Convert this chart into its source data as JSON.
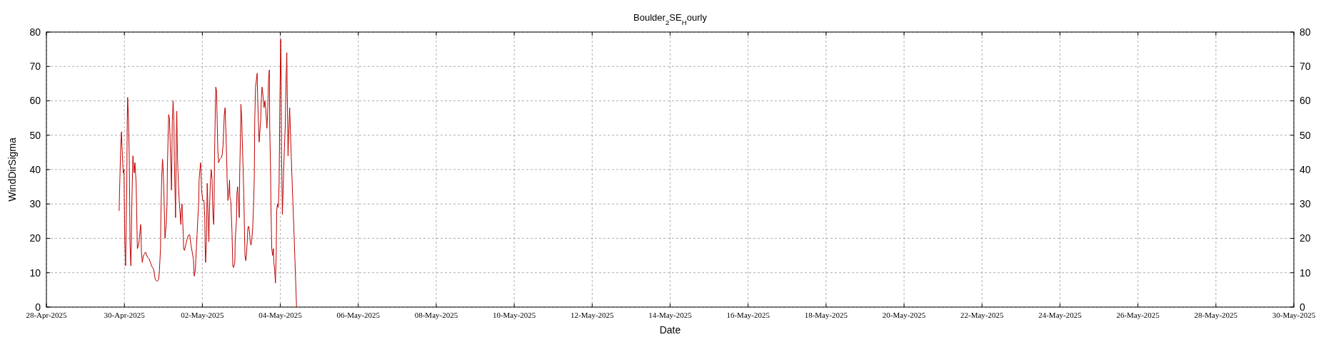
{
  "chart_data": {
    "type": "line",
    "title": "Boulder$_{2}$SE$_{H}$ourly",
    "xlabel": "Date",
    "ylabel": "WindDirSigma",
    "xlim": [
      "2025-04-28",
      "2025-05-30"
    ],
    "xticks": [
      {
        "value": "2025-04-28",
        "label": "28-Apr-2025"
      },
      {
        "value": "2025-04-30",
        "label": "30-Apr-2025"
      },
      {
        "value": "2025-05-02",
        "label": "02-May-2025"
      },
      {
        "value": "2025-05-04",
        "label": "04-May-2025"
      },
      {
        "value": "2025-05-06",
        "label": "06-May-2025"
      },
      {
        "value": "2025-05-08",
        "label": "08-May-2025"
      },
      {
        "value": "2025-05-10",
        "label": "10-May-2025"
      },
      {
        "value": "2025-05-12",
        "label": "12-May-2025"
      },
      {
        "value": "2025-05-14",
        "label": "14-May-2025"
      },
      {
        "value": "2025-05-16",
        "label": "16-May-2025"
      },
      {
        "value": "2025-05-18",
        "label": "18-May-2025"
      },
      {
        "value": "2025-05-20",
        "label": "20-May-2025"
      },
      {
        "value": "2025-05-22",
        "label": "22-May-2025"
      },
      {
        "value": "2025-05-24",
        "label": "24-May-2025"
      },
      {
        "value": "2025-05-26",
        "label": "26-May-2025"
      },
      {
        "value": "2025-05-28",
        "label": "28-May-2025"
      },
      {
        "value": "2025-05-30",
        "label": "30-May-2025"
      }
    ],
    "ylim": [
      0,
      80
    ],
    "yticks": [
      0,
      10,
      20,
      30,
      40,
      50,
      60,
      70,
      80
    ],
    "y2lim": [
      0,
      80
    ],
    "y2ticks": [
      0,
      10,
      20,
      30,
      40,
      50,
      60,
      70,
      80
    ],
    "grid": true,
    "line_style": "solid",
    "marker": "none",
    "series": [
      {
        "color": "#c00000",
        "x": [
          "2025-04-29T20:45",
          "2025-04-29T21:45",
          "2025-04-29T22:15",
          "2025-04-29T22:30",
          "2025-04-29T23:00",
          "2025-04-29T23:15",
          "2025-04-29T23:45",
          "2025-04-30T00:15",
          "2025-04-30T00:45",
          "2025-04-30T01:30",
          "2025-04-30T01:45",
          "2025-04-30T02:00",
          "2025-04-30T02:30",
          "2025-04-30T03:00",
          "2025-04-30T03:15",
          "2025-04-30T03:30",
          "2025-04-30T04:00",
          "2025-04-30T04:15",
          "2025-04-30T04:30",
          "2025-04-30T05:00",
          "2025-04-30T05:15",
          "2025-04-30T06:00",
          "2025-04-30T06:30",
          "2025-04-30T07:15",
          "2025-04-30T07:45",
          "2025-04-30T08:00",
          "2025-04-30T08:45",
          "2025-04-30T09:15",
          "2025-04-30T10:00",
          "2025-04-30T10:15",
          "2025-04-30T10:30",
          "2025-04-30T11:00",
          "2025-04-30T11:45",
          "2025-04-30T13:00",
          "2025-04-30T14:15",
          "2025-04-30T15:15",
          "2025-04-30T16:45",
          "2025-04-30T18:00",
          "2025-04-30T19:00",
          "2025-04-30T20:15",
          "2025-04-30T21:00",
          "2025-04-30T21:30",
          "2025-04-30T22:15",
          "2025-04-30T22:30",
          "2025-04-30T23:00",
          "2025-04-30T23:30",
          "2025-04-30T23:45",
          "2025-05-01T00:15",
          "2025-05-01T00:45",
          "2025-05-01T01:00",
          "2025-05-01T01:45",
          "2025-05-01T02:15",
          "2025-05-01T02:30",
          "2025-05-01T03:00",
          "2025-05-01T03:15",
          "2025-05-01T03:45",
          "2025-05-01T04:15",
          "2025-05-01T04:45",
          "2025-05-01T05:00",
          "2025-05-01T05:30",
          "2025-05-01T06:00",
          "2025-05-01T06:30",
          "2025-05-01T06:45",
          "2025-05-01T07:15",
          "2025-05-01T07:30",
          "2025-05-01T08:00",
          "2025-05-01T08:15",
          "2025-05-01T08:45",
          "2025-05-01T09:15",
          "2025-05-01T09:45",
          "2025-05-01T10:30",
          "2025-05-01T10:45",
          "2025-05-01T11:00",
          "2025-05-01T11:30",
          "2025-05-01T11:45",
          "2025-05-01T12:15",
          "2025-05-01T12:30",
          "2025-05-01T13:00",
          "2025-05-01T13:45",
          "2025-05-01T14:45",
          "2025-05-01T15:30",
          "2025-05-01T16:15",
          "2025-05-01T17:00",
          "2025-05-01T17:45",
          "2025-05-01T18:30",
          "2025-05-01T19:00",
          "2025-05-01T19:45",
          "2025-05-01T20:00",
          "2025-05-01T20:45",
          "2025-05-01T21:15",
          "2025-05-01T21:45",
          "2025-05-01T22:00",
          "2025-05-01T22:30",
          "2025-05-01T23:00",
          "2025-05-01T23:30",
          "2025-05-02T00:15",
          "2025-05-02T01:00",
          "2025-05-02T01:30",
          "2025-05-02T01:45",
          "2025-05-02T02:00",
          "2025-05-02T02:30",
          "2025-05-02T03:00",
          "2025-05-02T03:15",
          "2025-05-02T03:45",
          "2025-05-02T04:00",
          "2025-05-02T04:30",
          "2025-05-02T05:00",
          "2025-05-02T05:30",
          "2025-05-02T06:00",
          "2025-05-02T06:15",
          "2025-05-02T06:30",
          "2025-05-02T07:00",
          "2025-05-02T07:15",
          "2025-05-02T07:30",
          "2025-05-02T08:15",
          "2025-05-02T08:45",
          "2025-05-02T09:00",
          "2025-05-02T09:30",
          "2025-05-02T10:00",
          "2025-05-02T10:45",
          "2025-05-02T11:45",
          "2025-05-02T12:15",
          "2025-05-02T12:45",
          "2025-05-02T13:15",
          "2025-05-02T13:30",
          "2025-05-02T14:00",
          "2025-05-02T14:30",
          "2025-05-02T15:00",
          "2025-05-02T15:15",
          "2025-05-02T15:45",
          "2025-05-02T16:15",
          "2025-05-02T16:45",
          "2025-05-02T17:00",
          "2025-05-02T17:30",
          "2025-05-02T18:15",
          "2025-05-02T18:45",
          "2025-05-02T19:15",
          "2025-05-02T20:00",
          "2025-05-02T20:15",
          "2025-05-02T21:00",
          "2025-05-02T21:15",
          "2025-05-02T21:45",
          "2025-05-02T22:15",
          "2025-05-02T22:45",
          "2025-05-02T23:00",
          "2025-05-02T23:30",
          "2025-05-02T23:45",
          "2025-05-03T00:15",
          "2025-05-03T00:30",
          "2025-05-03T01:00",
          "2025-05-03T01:30",
          "2025-05-03T02:00",
          "2025-05-03T02:15",
          "2025-05-03T02:45",
          "2025-05-03T03:15",
          "2025-05-03T03:45",
          "2025-05-03T04:00",
          "2025-05-03T04:30",
          "2025-05-03T05:00",
          "2025-05-03T05:30",
          "2025-05-03T06:00",
          "2025-05-03T06:30",
          "2025-05-03T07:00",
          "2025-05-03T07:30",
          "2025-05-03T08:00",
          "2025-05-03T08:15",
          "2025-05-03T08:45",
          "2025-05-03T09:15",
          "2025-05-03T09:45",
          "2025-05-03T10:00",
          "2025-05-03T10:30",
          "2025-05-03T11:00",
          "2025-05-03T11:15",
          "2025-05-03T12:00",
          "2025-05-03T12:15",
          "2025-05-03T12:45",
          "2025-05-03T13:15",
          "2025-05-03T13:45",
          "2025-05-03T14:00",
          "2025-05-03T14:30",
          "2025-05-03T15:00",
          "2025-05-03T15:30",
          "2025-05-03T15:45",
          "2025-05-03T16:15",
          "2025-05-03T16:45",
          "2025-05-03T17:15",
          "2025-05-03T17:30",
          "2025-05-03T18:00",
          "2025-05-03T18:15",
          "2025-05-03T18:45",
          "2025-05-03T19:15",
          "2025-05-03T19:45",
          "2025-05-03T20:00",
          "2025-05-03T20:30",
          "2025-05-03T21:00",
          "2025-05-03T21:30",
          "2025-05-03T21:45",
          "2025-05-03T22:15",
          "2025-05-03T22:45",
          "2025-05-03T23:15",
          "2025-05-03T23:45",
          "2025-05-04T00:15",
          "2025-05-04T00:30",
          "2025-05-04T00:45",
          "2025-05-04T01:15",
          "2025-05-04T01:45",
          "2025-05-04T02:00",
          "2025-05-04T02:30",
          "2025-05-04T03:00",
          "2025-05-04T03:30",
          "2025-05-04T04:00",
          "2025-05-04T04:15",
          "2025-05-04T04:45",
          "2025-05-04T05:45",
          "2025-05-04T07:00",
          "2025-05-04T08:15",
          "2025-05-04T10:00"
        ],
        "values": [
          28,
          47,
          51,
          47,
          42,
          39,
          40,
          19,
          12,
          36,
          53,
          61,
          55,
          44,
          31,
          18,
          12,
          17,
          28,
          39,
          44,
          39,
          42,
          36,
          23,
          17,
          18,
          20,
          24,
          22,
          16,
          13,
          15,
          16,
          14.5,
          14,
          12,
          11,
          8,
          7.5,
          8,
          10,
          17,
          27,
          38,
          43,
          41,
          35,
          25,
          20,
          24,
          30,
          41,
          51,
          56,
          55,
          47,
          39,
          34,
          54,
          60,
          54,
          43,
          32,
          26,
          50,
          57,
          43,
          36,
          31,
          26,
          24,
          28,
          30,
          27,
          21,
          17,
          16.5,
          18,
          20,
          21,
          21,
          18,
          16,
          14,
          9,
          11,
          14,
          21,
          26,
          30,
          37,
          40,
          42,
          34,
          31,
          31,
          26,
          17,
          13,
          19,
          36,
          32,
          23,
          19,
          30,
          37,
          40,
          37,
          32,
          27,
          24,
          31,
          44,
          64,
          63,
          57,
          46,
          42,
          43,
          43.5,
          44.5,
          47,
          53,
          56,
          58,
          51,
          43,
          37,
          31,
          33,
          37,
          32,
          31,
          22,
          12,
          11.5,
          13,
          20,
          25,
          33,
          35,
          30,
          26,
          39,
          50,
          59,
          55,
          50,
          42,
          33,
          21,
          15,
          13.5,
          16,
          20,
          23,
          23.5,
          22,
          19,
          18,
          20,
          23,
          29,
          38,
          54,
          64,
          66,
          68,
          62,
          54,
          48,
          50,
          55,
          60,
          64,
          62,
          59,
          58,
          60,
          58,
          54,
          52,
          57,
          66,
          69,
          52,
          40,
          29,
          17,
          15,
          17,
          13,
          11,
          7,
          16,
          28,
          30,
          29,
          36,
          60,
          78,
          68,
          45,
          27,
          34,
          39,
          46,
          52,
          65,
          74,
          63,
          44,
          58,
          40,
          24,
          0
        ]
      }
    ]
  }
}
